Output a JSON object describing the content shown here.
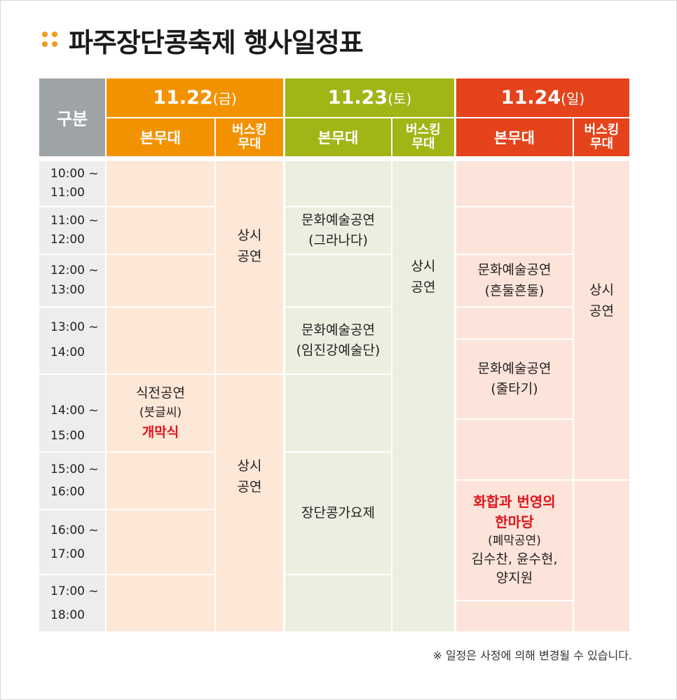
{
  "title": "파주장단콩축제 행사일정표",
  "corner": "구분",
  "days": [
    {
      "date": "11.22",
      "dow": "(금)"
    },
    {
      "date": "11.23",
      "dow": "(토)"
    },
    {
      "date": "11.24",
      "dow": "(일)"
    }
  ],
  "stage_main": "본무대",
  "stage_busking_1": "버스킹",
  "stage_busking_2": "무대",
  "times": [
    {
      "start": "10:00 ~",
      "end": "11:00"
    },
    {
      "start": "11:00 ~",
      "end": "12:00"
    },
    {
      "start": "12:00 ~",
      "end": "13:00"
    },
    {
      "start": "13:00 ~",
      "end": "14:00"
    },
    {
      "start": "14:00 ~",
      "end": "15:00"
    },
    {
      "start": "15:00 ~",
      "end": "16:00"
    },
    {
      "start": "16:00 ~",
      "end": "17:00"
    },
    {
      "start": "17:00 ~",
      "end": "18:00"
    }
  ],
  "events": {
    "day1_main": {
      "line1": "식전공연",
      "line2": "(붓글씨)",
      "highlight": "개막식"
    },
    "day1_busk_a": {
      "line1": "상시",
      "line2": "공연"
    },
    "day1_busk_b": {
      "line1": "상시",
      "line2": "공연"
    },
    "day2_main_a": {
      "line1": "문화예술공연",
      "line2": "(그라나다)"
    },
    "day2_main_b": {
      "line1": "문화예술공연",
      "line2": "(임진강예술단)"
    },
    "day2_main_c": {
      "line1": "장단콩가요제"
    },
    "day2_busk": {
      "line1": "상시",
      "line2": "공연"
    },
    "day3_main_a": {
      "line1": "문화예술공연",
      "line2": "(흔둘흔둘)"
    },
    "day3_main_b": {
      "line1": "문화예술공연",
      "line2": "(줄타기)"
    },
    "day3_main_c": {
      "hl1": "화합과 번영의",
      "hl2": "한마당",
      "line1": "(폐막공연)",
      "line2": "김수찬, 윤수현,",
      "line3": "양지원"
    },
    "day3_busk": {
      "line1": "상시",
      "line2": "공연"
    }
  },
  "footnote": "※ 일정은 사정에 의해 변경될 수 있습니다.",
  "colors": {
    "day1": "#f39200",
    "day2": "#a1b516",
    "day3": "#e5431b",
    "corner": "#9ea3a6",
    "highlight": "#e0141b",
    "accent_dots": "#f39a1e"
  }
}
